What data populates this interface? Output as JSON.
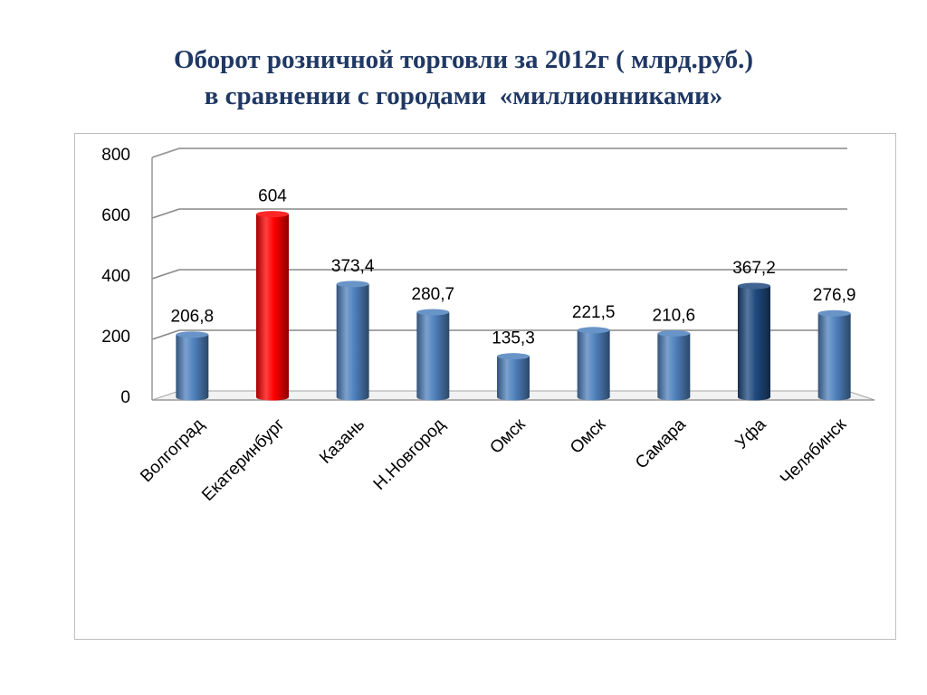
{
  "slide": {
    "title_line1": "Оборот розничной торговли за 2012г ( млрд.руб.)",
    "title_line2": "в сравнении с городами  «миллионниками»"
  },
  "chart_data": {
    "type": "bar",
    "style": "3d-cylinder",
    "categories": [
      "Волгоград",
      "Екатеринбург",
      "Казань",
      "Н.Новгород",
      "Омск",
      "Омск",
      "Самара",
      "Уфа",
      "Челябинск"
    ],
    "values": [
      206.8,
      604,
      373.4,
      280.7,
      135.3,
      221.5,
      210.6,
      367.2,
      276.9
    ],
    "value_labels": [
      "206,8",
      "604",
      "373,4",
      "280,7",
      "135,3",
      "221,5",
      "210,6",
      "367,2",
      "276,9"
    ],
    "bar_colors": [
      "#4f81bd",
      "#ff0000",
      "#4f81bd",
      "#4f81bd",
      "#4f81bd",
      "#4f81bd",
      "#4f81bd",
      "#1f497d",
      "#4f81bd"
    ],
    "ylim": [
      0,
      800
    ],
    "yticks": [
      0,
      200,
      400,
      600,
      800
    ],
    "grid": true,
    "legend": "none"
  }
}
